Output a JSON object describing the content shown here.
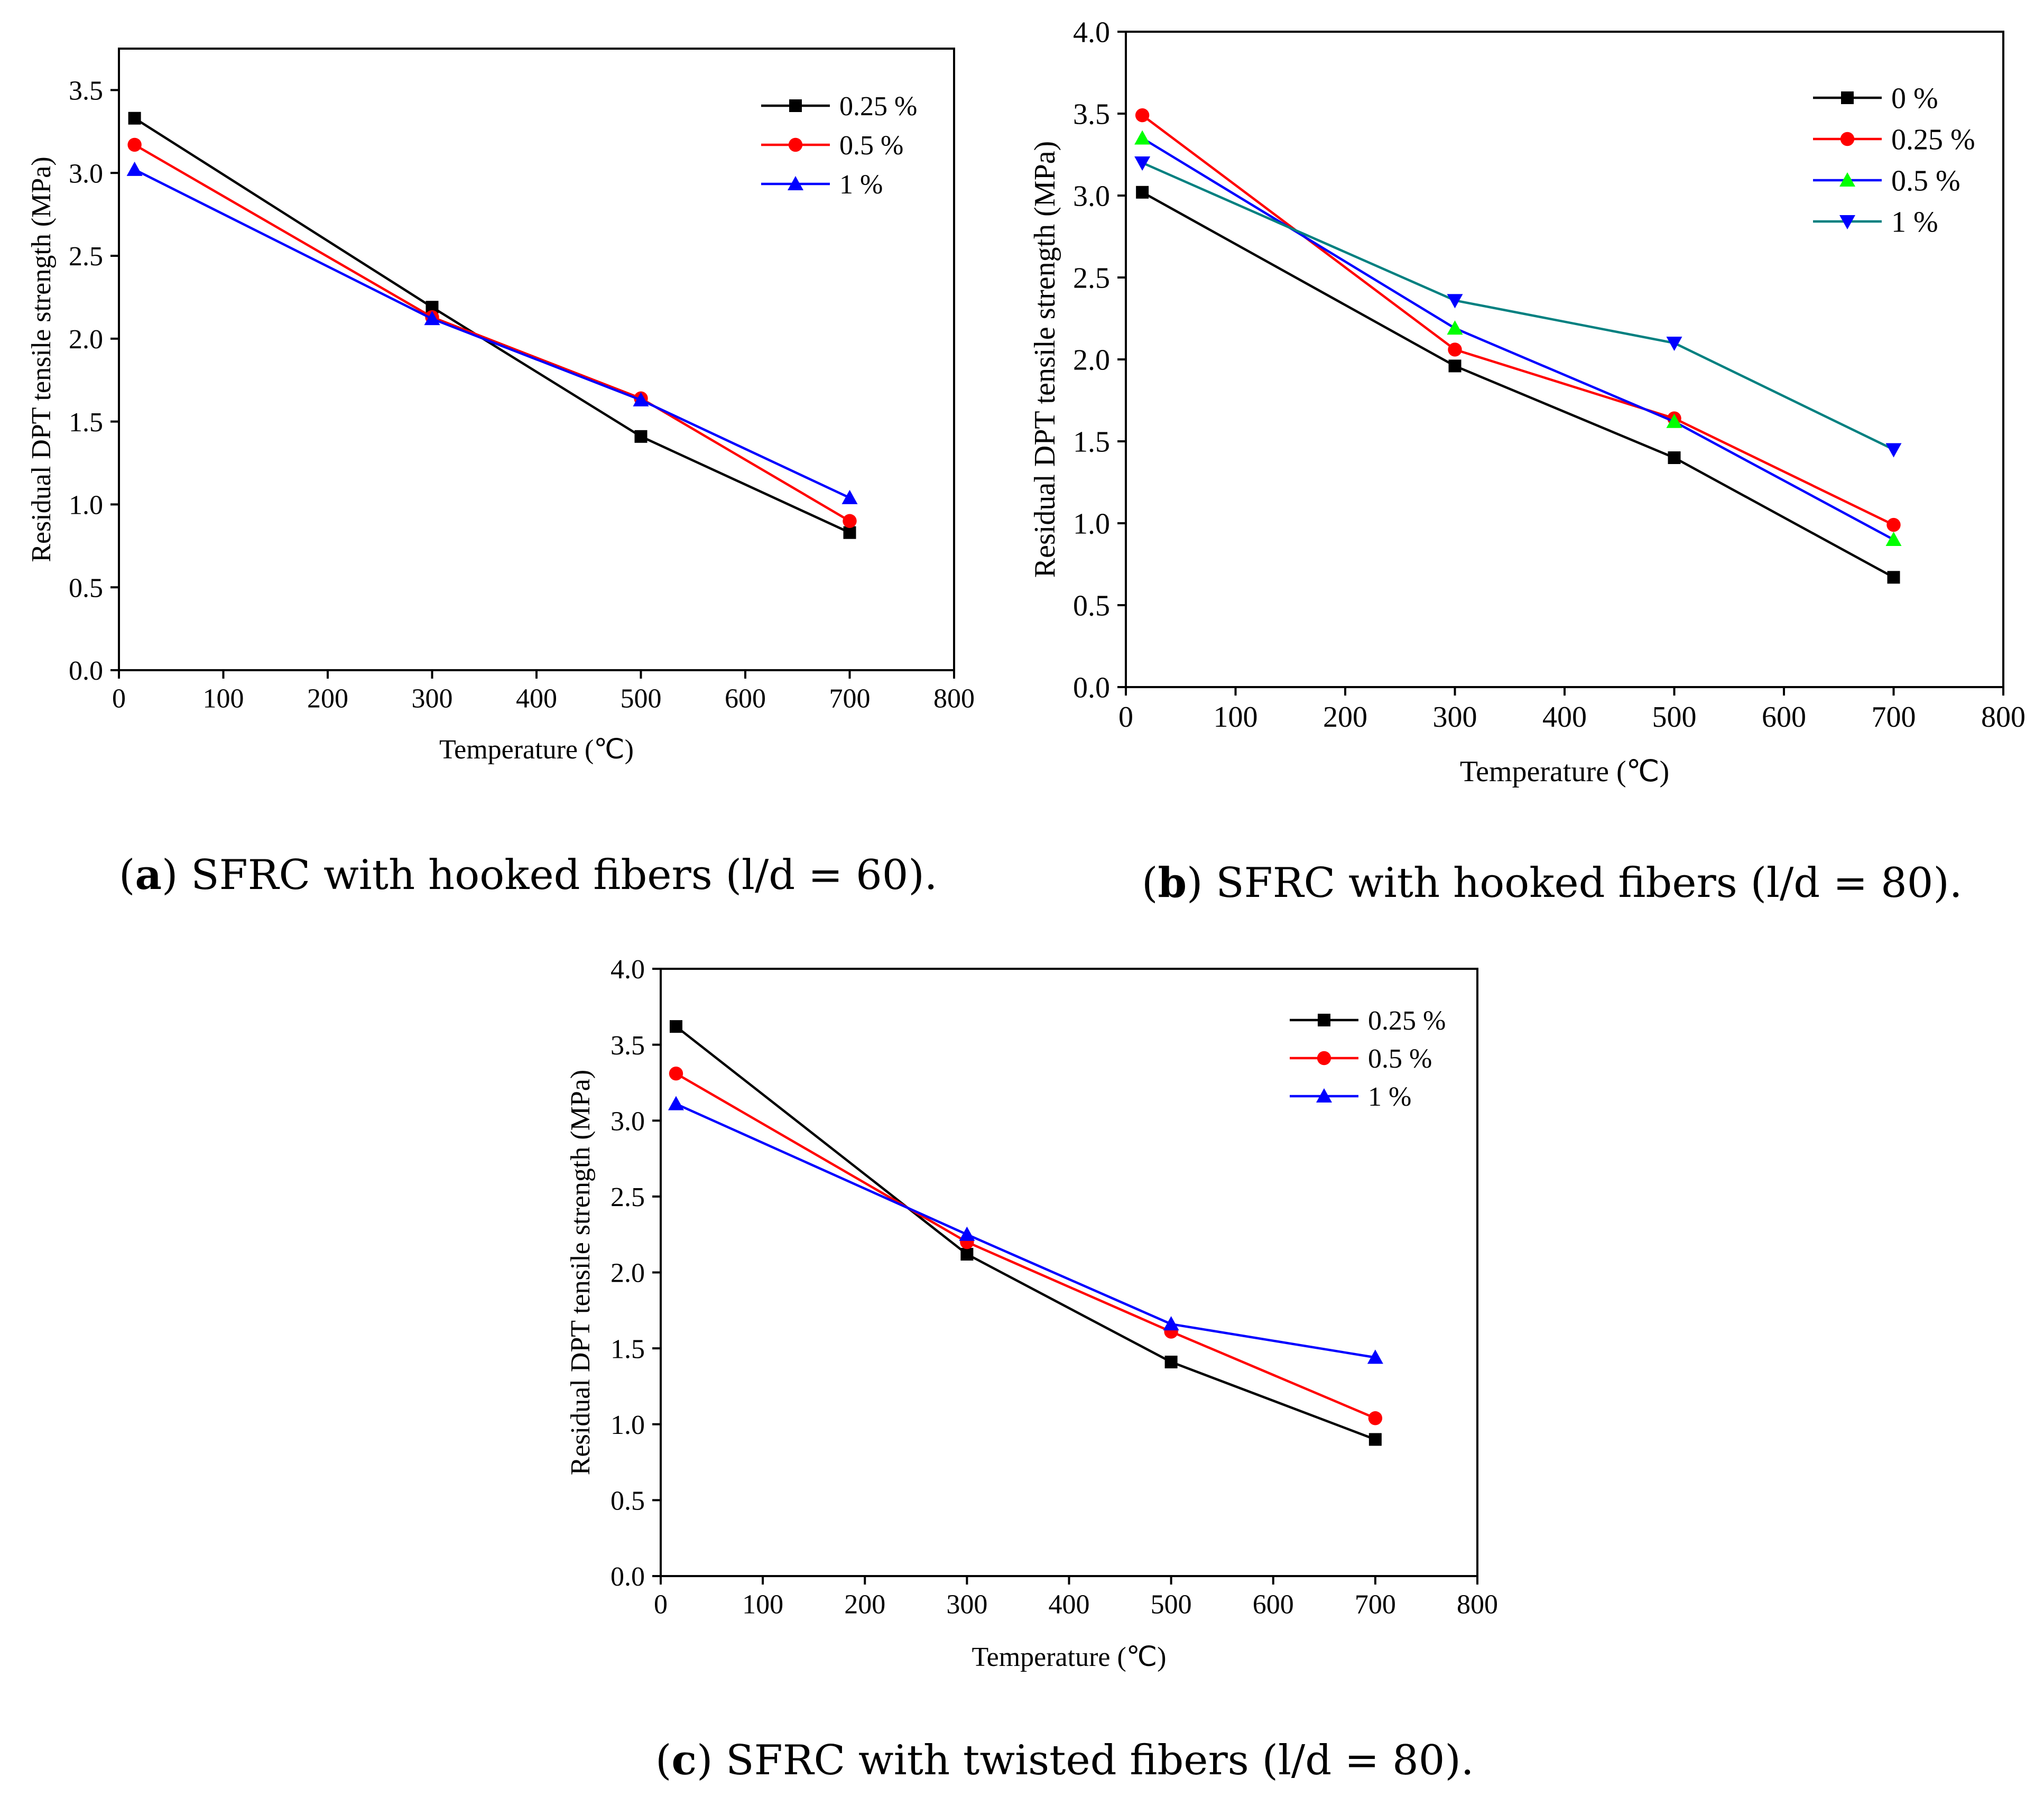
{
  "captions": [
    {
      "letter": "a",
      "text": " SFRC with hooked fibers (l/d = 60)."
    },
    {
      "letter": "b",
      "text": " SFRC with hooked fibers (l/d = 80)."
    },
    {
      "letter": "c",
      "text": " SFRC with twisted fibers (l/d = 80)."
    }
  ],
  "chart_data": [
    {
      "type": "line",
      "xlabel": "Temperature (℃)",
      "ylabel": "Residual DPT tensile strength (MPa)",
      "xlim": [
        0,
        800
      ],
      "ylim": [
        0,
        3.75
      ],
      "xticks": [
        "0",
        "100",
        "200",
        "300",
        "400",
        "500",
        "600",
        "700",
        "800"
      ],
      "yticks": [
        "0.0",
        "0.5",
        "1.0",
        "1.5",
        "2.0",
        "2.5",
        "3.0",
        "3.5"
      ],
      "legend_position": "top-right",
      "series": [
        {
          "name": "0.25 %",
          "color": "#000000",
          "marker": "square",
          "x": [
            15,
            300,
            500,
            700
          ],
          "y": [
            3.33,
            2.19,
            1.41,
            0.83
          ]
        },
        {
          "name": "0.5 %",
          "color": "#ff0000",
          "marker": "circle",
          "x": [
            15,
            300,
            500,
            700
          ],
          "y": [
            3.17,
            2.13,
            1.64,
            0.9
          ]
        },
        {
          "name": "1 %",
          "color": "#0000ff",
          "marker": "triangle-up",
          "x": [
            15,
            300,
            500,
            700
          ],
          "y": [
            3.02,
            2.12,
            1.63,
            1.04
          ]
        }
      ]
    },
    {
      "type": "line",
      "xlabel": "Temperature (℃)",
      "ylabel": "Residual DPT tensile strength (MPa)",
      "xlim": [
        0,
        800
      ],
      "ylim": [
        0,
        4.0
      ],
      "xticks": [
        "0",
        "100",
        "200",
        "300",
        "400",
        "500",
        "600",
        "700",
        "800"
      ],
      "yticks": [
        "0.0",
        "0.5",
        "1.0",
        "1.5",
        "2.0",
        "2.5",
        "3.0",
        "3.5",
        "4.0"
      ],
      "legend_position": "top-right",
      "series": [
        {
          "name": "0 %",
          "color": "#000000",
          "marker": "square",
          "x": [
            15,
            300,
            500,
            700
          ],
          "y": [
            3.02,
            1.96,
            1.4,
            0.67
          ]
        },
        {
          "name": "0.25 %",
          "color": "#ff0000",
          "marker": "circle",
          "x": [
            15,
            300,
            500,
            700
          ],
          "y": [
            3.49,
            2.06,
            1.64,
            0.99
          ]
        },
        {
          "name": "0.5 %",
          "color": "#0000ff",
          "marker_color": "#00ff00",
          "marker": "triangle-up",
          "x": [
            15,
            300,
            500,
            700
          ],
          "y": [
            3.35,
            2.19,
            1.62,
            0.9
          ]
        },
        {
          "name": "1 %",
          "color": "#008080",
          "marker_color": "#0000ff",
          "marker": "triangle-down",
          "x": [
            15,
            300,
            500,
            700
          ],
          "y": [
            3.2,
            2.36,
            2.1,
            1.45
          ]
        }
      ]
    },
    {
      "type": "line",
      "xlabel": "Temperature (℃)",
      "ylabel": "Residual DPT tensile strength (MPa)",
      "xlim": [
        0,
        800
      ],
      "ylim": [
        0,
        4.0
      ],
      "xticks": [
        "0",
        "100",
        "200",
        "300",
        "400",
        "500",
        "600",
        "700",
        "800"
      ],
      "yticks": [
        "0.0",
        "0.5",
        "1.0",
        "1.5",
        "2.0",
        "2.5",
        "3.0",
        "3.5",
        "4.0"
      ],
      "legend_position": "top-right",
      "series": [
        {
          "name": "0.25 %",
          "color": "#000000",
          "marker": "square",
          "x": [
            15,
            300,
            500,
            700
          ],
          "y": [
            3.62,
            2.12,
            1.41,
            0.9
          ]
        },
        {
          "name": "0.5 %",
          "color": "#ff0000",
          "marker": "circle",
          "x": [
            15,
            300,
            500,
            700
          ],
          "y": [
            3.31,
            2.2,
            1.61,
            1.04
          ]
        },
        {
          "name": "1 %",
          "color": "#0000ff",
          "marker": "triangle-up",
          "x": [
            15,
            300,
            500,
            700
          ],
          "y": [
            3.11,
            2.25,
            1.66,
            1.44
          ]
        }
      ]
    }
  ]
}
